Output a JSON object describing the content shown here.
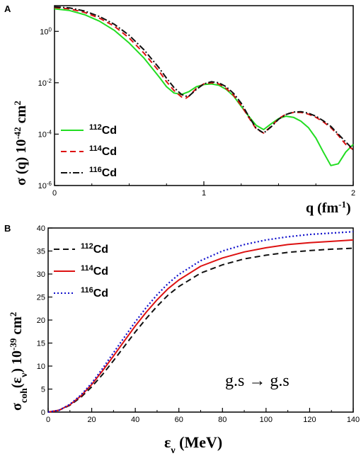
{
  "chart_data": [
    {
      "panel": "A",
      "type": "line",
      "xlabel": "q (fm-1)",
      "ylabel": "σ (q) 10-42 cm2",
      "xlim": [
        0,
        2
      ],
      "ylim": [
        1e-06,
        10
      ],
      "yscale": "log",
      "x_ticks": [
        "0",
        "1",
        "2"
      ],
      "y_ticks": [
        "10-6",
        "10-4",
        "10-2",
        "100"
      ],
      "legend_position": "lower-left",
      "series": [
        {
          "name": "112Cd",
          "color": "#22dd22",
          "style": "solid",
          "x": [
            0,
            0.1,
            0.2,
            0.3,
            0.4,
            0.5,
            0.6,
            0.7,
            0.75,
            0.8,
            0.85,
            0.9,
            0.95,
            1.0,
            1.05,
            1.1,
            1.15,
            1.2,
            1.25,
            1.3,
            1.35,
            1.4,
            1.45,
            1.5,
            1.55,
            1.6,
            1.65,
            1.7,
            1.75,
            1.8,
            1.85,
            1.9,
            1.95,
            2.0
          ],
          "y": [
            7.5,
            6.5,
            4.5,
            2.5,
            1.1,
            0.35,
            0.09,
            0.017,
            0.007,
            0.004,
            0.0035,
            0.0045,
            0.007,
            0.0085,
            0.009,
            0.008,
            0.0055,
            0.003,
            0.0012,
            0.0005,
            0.00022,
            0.00015,
            0.00025,
            0.0004,
            0.0005,
            0.00045,
            0.00032,
            0.00018,
            7e-05,
            2e-05,
            6e-06,
            7e-06,
            2e-05,
            4e-05
          ]
        },
        {
          "name": "114Cd",
          "color": "#dd1111",
          "style": "dashed",
          "x": [
            0,
            0.1,
            0.2,
            0.3,
            0.4,
            0.5,
            0.6,
            0.7,
            0.75,
            0.8,
            0.85,
            0.88,
            0.9,
            0.95,
            1.0,
            1.05,
            1.1,
            1.15,
            1.2,
            1.25,
            1.3,
            1.35,
            1.4,
            1.45,
            1.5,
            1.55,
            1.6,
            1.65,
            1.7,
            1.75,
            1.8,
            1.85,
            1.9,
            1.95,
            2.0
          ],
          "y": [
            8.5,
            7.5,
            5.5,
            3.3,
            1.6,
            0.55,
            0.14,
            0.028,
            0.011,
            0.005,
            0.0028,
            0.0025,
            0.003,
            0.006,
            0.009,
            0.01,
            0.009,
            0.006,
            0.0032,
            0.0013,
            0.00045,
            0.00016,
            0.00011,
            0.0002,
            0.0004,
            0.0006,
            0.0007,
            0.0007,
            0.0006,
            0.00045,
            0.0003,
            0.00018,
            9e-05,
            4e-05,
            2.5e-05
          ]
        },
        {
          "name": "116Cd",
          "color": "#111111",
          "style": "dashdot",
          "x": [
            0,
            0.1,
            0.2,
            0.3,
            0.4,
            0.5,
            0.6,
            0.7,
            0.75,
            0.8,
            0.85,
            0.88,
            0.9,
            0.95,
            1.0,
            1.05,
            1.1,
            1.15,
            1.2,
            1.25,
            1.3,
            1.35,
            1.4,
            1.45,
            1.5,
            1.55,
            1.6,
            1.65,
            1.7,
            1.75,
            1.8,
            1.85,
            1.9,
            1.95,
            2.0
          ],
          "y": [
            9,
            8.2,
            6.2,
            3.8,
            1.9,
            0.7,
            0.19,
            0.038,
            0.015,
            0.0065,
            0.0035,
            0.003,
            0.003,
            0.0055,
            0.009,
            0.011,
            0.01,
            0.007,
            0.0038,
            0.0016,
            0.0005,
            0.00017,
            0.00011,
            0.00019,
            0.00038,
            0.00058,
            0.00072,
            0.00075,
            0.00065,
            0.0005,
            0.00033,
            0.0002,
            0.0001,
            5e-05,
            2.5e-05
          ]
        }
      ]
    },
    {
      "panel": "B",
      "type": "line",
      "xlabel": "εν (MeV)",
      "ylabel": "σcoh(εν) 10-39 cm2",
      "xlim": [
        0,
        140
      ],
      "ylim": [
        0,
        40
      ],
      "x_ticks": [
        "0",
        "20",
        "40",
        "60",
        "80",
        "100",
        "120",
        "140"
      ],
      "y_ticks": [
        "0",
        "5",
        "10",
        "15",
        "20",
        "25",
        "30",
        "35",
        "40"
      ],
      "annotation": "g.s → g.s",
      "legend_position": "upper-left",
      "series": [
        {
          "name": "112Cd",
          "color": "#111111",
          "style": "dashed",
          "x": [
            0,
            5,
            10,
            15,
            20,
            25,
            30,
            35,
            40,
            45,
            50,
            55,
            60,
            70,
            80,
            90,
            100,
            110,
            120,
            130,
            140
          ],
          "y": [
            0,
            0.4,
            1.5,
            3.2,
            5.5,
            8.2,
            11.2,
            14.3,
            17.4,
            20.3,
            23.0,
            25.4,
            27.3,
            30.2,
            32.0,
            33.3,
            34.1,
            34.7,
            35.1,
            35.4,
            35.6
          ]
        },
        {
          "name": "114Cd",
          "color": "#dd1111",
          "style": "solid",
          "x": [
            0,
            5,
            10,
            15,
            20,
            25,
            30,
            35,
            40,
            45,
            50,
            55,
            60,
            70,
            80,
            90,
            100,
            110,
            120,
            130,
            140
          ],
          "y": [
            0,
            0.4,
            1.6,
            3.5,
            6.0,
            9.0,
            12.2,
            15.5,
            18.7,
            21.7,
            24.4,
            26.8,
            28.7,
            31.7,
            33.5,
            34.8,
            35.7,
            36.4,
            36.8,
            37.1,
            37.4
          ]
        },
        {
          "name": "116Cd",
          "color": "#1111cc",
          "style": "dotted",
          "x": [
            0,
            5,
            10,
            15,
            20,
            25,
            30,
            35,
            40,
            45,
            50,
            55,
            60,
            70,
            80,
            90,
            100,
            110,
            120,
            130,
            140
          ],
          "y": [
            0,
            0.4,
            1.7,
            3.7,
            6.3,
            9.5,
            12.9,
            16.3,
            19.6,
            22.7,
            25.5,
            27.9,
            29.9,
            32.9,
            35.0,
            36.4,
            37.4,
            38.1,
            38.6,
            38.9,
            39.2
          ]
        }
      ]
    }
  ]
}
